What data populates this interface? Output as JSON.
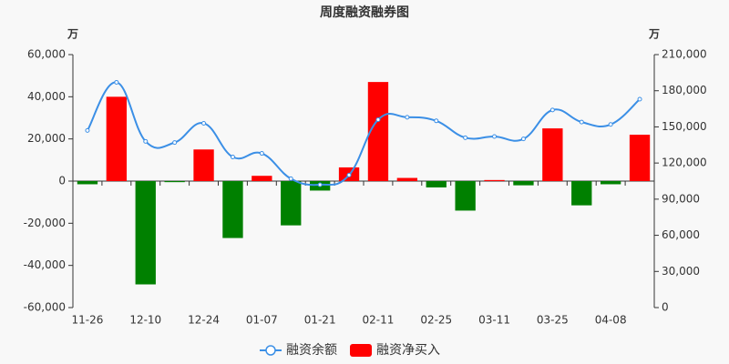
{
  "chart_data": {
    "type": "bar-line",
    "title": "周度融资融券图",
    "y_unit": "万",
    "y2_unit": "万",
    "categories": [
      "11-26",
      null,
      "12-10",
      null,
      "12-24",
      null,
      "01-07",
      null,
      "01-21",
      null,
      "02-11",
      null,
      "02-25",
      null,
      "03-11",
      null,
      "03-25",
      null,
      "04-08",
      null
    ],
    "series": [
      {
        "name": "融资余额",
        "type": "line",
        "axis": "y2",
        "color": "#3b8fe6",
        "values": [
          147000,
          187000,
          138000,
          137000,
          153000,
          125000,
          128000,
          107000,
          102000,
          110000,
          156000,
          158000,
          155000,
          141000,
          142000,
          140000,
          164000,
          154000,
          152000,
          173000
        ]
      },
      {
        "name": "融资净买入",
        "type": "bar",
        "axis": "y",
        "color": "#ff0000",
        "negative_color": "#008000",
        "values": [
          -1500,
          40000,
          -49000,
          -500,
          15000,
          -27000,
          2500,
          -21000,
          -4500,
          6500,
          47000,
          1500,
          -3000,
          -14000,
          500,
          -2000,
          25000,
          -11500,
          -1500,
          22000
        ]
      }
    ],
    "ylim": [
      -60000,
      60000
    ],
    "yticks": [
      {
        "value": -60000,
        "label": "-60,000"
      },
      {
        "value": -40000,
        "label": "-40,000"
      },
      {
        "value": -20000,
        "label": "-20,000"
      },
      0,
      {
        "value": 20000,
        "label": "20,000"
      },
      {
        "value": 40000,
        "label": "40,000"
      },
      {
        "value": 60000,
        "label": "60,000"
      }
    ],
    "y2lim": [
      0,
      210000
    ],
    "y2ticks": [
      0,
      {
        "value": 30000,
        "label": "30,000"
      },
      {
        "value": 60000,
        "label": "60,000"
      },
      {
        "value": 90000,
        "label": "90,000"
      },
      {
        "value": 120000,
        "label": "120,000"
      },
      {
        "value": 150000,
        "label": "150,000"
      },
      {
        "value": 180000,
        "label": "180,000"
      },
      {
        "value": 210000,
        "label": "210,000"
      }
    ],
    "grid": false
  }
}
